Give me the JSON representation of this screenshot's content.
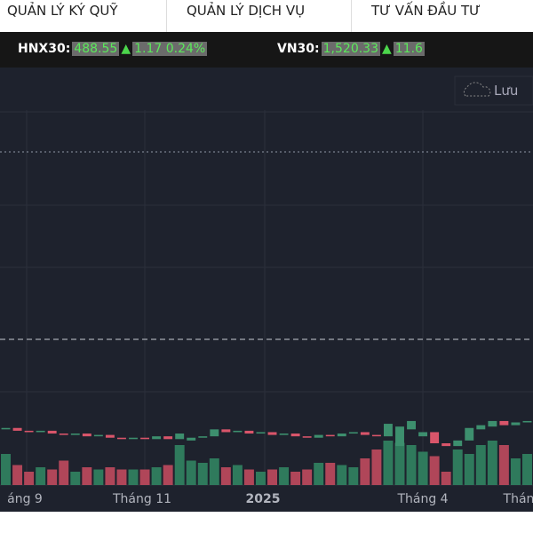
{
  "nav": {
    "tabs": [
      "QUẢN LÝ KÝ QUỸ",
      "QUẢN LÝ DỊCH VỤ",
      "TƯ VẤN ĐẦU TƯ"
    ]
  },
  "ticker": [
    {
      "name": "HNX30:",
      "price": "488.55",
      "arrow": "▲",
      "change": "1.17 0.24%"
    },
    {
      "name": "VN30:",
      "price": "1,520.33",
      "arrow": "▲",
      "change": "11.6"
    }
  ],
  "toolbar": {
    "save": "Lưu"
  },
  "chart_data": {
    "type": "candlestick",
    "x_labels": [
      "áng 9",
      "Tháng 11",
      "2025",
      "Tháng 4",
      "Thán"
    ],
    "open": [
      1140,
      1141,
      1139,
      1138,
      1139,
      1137,
      1136,
      1137,
      1135,
      1136,
      1134,
      1133,
      1134,
      1133,
      1135,
      1133,
      1132,
      1134,
      1135,
      1140,
      1138,
      1139,
      1137,
      1138,
      1136,
      1137,
      1135,
      1134,
      1136,
      1135,
      1137,
      1138,
      1136,
      1135,
      1128,
      1140,
      1135,
      1138,
      1130,
      1128,
      1132,
      1140,
      1142,
      1146,
      1143,
      1145
    ],
    "close": [
      1141,
      1139,
      1138,
      1139,
      1137,
      1136,
      1137,
      1135,
      1136,
      1134,
      1133,
      1134,
      1133,
      1135,
      1133,
      1137,
      1134,
      1135,
      1140,
      1138,
      1139,
      1137,
      1138,
      1136,
      1137,
      1135,
      1134,
      1136,
      1135,
      1137,
      1138,
      1136,
      1135,
      1144,
      1142,
      1146,
      1138,
      1130,
      1128,
      1132,
      1141,
      1143,
      1146,
      1143,
      1145,
      1146
    ],
    "volume": [
      70,
      45,
      30,
      40,
      35,
      55,
      30,
      40,
      35,
      40,
      35,
      35,
      35,
      40,
      45,
      90,
      55,
      50,
      60,
      40,
      45,
      35,
      30,
      35,
      40,
      30,
      35,
      50,
      50,
      45,
      40,
      60,
      80,
      100,
      95,
      90,
      75,
      65,
      30,
      80,
      70,
      90,
      100,
      90,
      60,
      70
    ],
    "ylim": [
      1100,
      1400
    ],
    "vlim": [
      0,
      100
    ],
    "colors": {
      "up": "#3d8f6e",
      "down": "#d9556a",
      "vol_up": "#2f7a5c",
      "vol_down": "#b04659"
    }
  }
}
